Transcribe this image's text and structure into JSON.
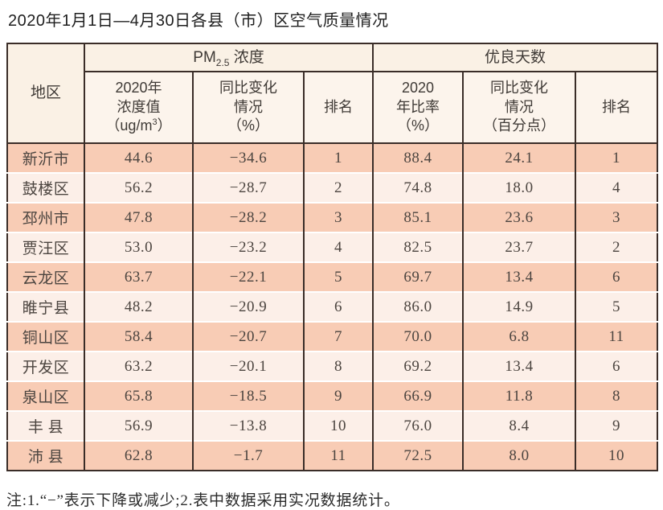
{
  "page": {
    "title": "2020年1月1日—4月30日各县（市）区空气质量情况",
    "note": "注:1.“−”表示下降或减少;2.表中数据采用实况数据统计。"
  },
  "chart_data": {
    "type": "table",
    "title": "2020年1月1日—4月30日各县（市）区空气质量情况",
    "headers": {
      "region": "地区",
      "pm_group_prefix": "PM",
      "pm_group_sub": "2.5",
      "pm_group_suffix": " 浓度",
      "good_group": "优良天数",
      "pm_value_l1": "2020年",
      "pm_value_l2": "浓度值",
      "pm_value_l3a": "（ug/m",
      "pm_value_l3sup": "3",
      "pm_value_l3b": "）",
      "pm_change_l1": "同比变化",
      "pm_change_l2": "情况",
      "pm_change_l3": "（%）",
      "pm_rank": "排名",
      "good_rate_l1": "2020",
      "good_rate_l2": "年比率",
      "good_rate_l3": "（%）",
      "good_change_l1": "同比变化",
      "good_change_l2": "情况",
      "good_change_l3": "（百分点）",
      "good_rank": "排名"
    },
    "fields": [
      "region",
      "pm_value",
      "pm_change",
      "pm_rank",
      "good_rate",
      "good_change",
      "good_rank"
    ],
    "rows": [
      {
        "region": "新沂市",
        "pm_value": "44.6",
        "pm_change": "−34.6",
        "pm_rank": "1",
        "good_rate": "88.4",
        "good_change": "24.1",
        "good_rank": "1"
      },
      {
        "region": "鼓楼区",
        "pm_value": "56.2",
        "pm_change": "−28.7",
        "pm_rank": "2",
        "good_rate": "74.8",
        "good_change": "18.0",
        "good_rank": "4"
      },
      {
        "region": "邳州市",
        "pm_value": "47.8",
        "pm_change": "−28.2",
        "pm_rank": "3",
        "good_rate": "85.1",
        "good_change": "23.6",
        "good_rank": "3"
      },
      {
        "region": "贾汪区",
        "pm_value": "53.0",
        "pm_change": "−23.2",
        "pm_rank": "4",
        "good_rate": "82.5",
        "good_change": "23.7",
        "good_rank": "2"
      },
      {
        "region": "云龙区",
        "pm_value": "63.7",
        "pm_change": "−22.1",
        "pm_rank": "5",
        "good_rate": "69.7",
        "good_change": "13.4",
        "good_rank": "6"
      },
      {
        "region": "睢宁县",
        "pm_value": "48.2",
        "pm_change": "−20.9",
        "pm_rank": "6",
        "good_rate": "86.0",
        "good_change": "14.9",
        "good_rank": "5"
      },
      {
        "region": "铜山区",
        "pm_value": "58.4",
        "pm_change": "−20.7",
        "pm_rank": "7",
        "good_rate": "70.0",
        "good_change": "6.8",
        "good_rank": "11"
      },
      {
        "region": "开发区",
        "pm_value": "63.2",
        "pm_change": "−20.1",
        "pm_rank": "8",
        "good_rate": "69.2",
        "good_change": "13.4",
        "good_rank": "6"
      },
      {
        "region": "泉山区",
        "pm_value": "65.8",
        "pm_change": "−18.5",
        "pm_rank": "9",
        "good_rate": "66.9",
        "good_change": "11.8",
        "good_rank": "8"
      },
      {
        "region": "丰 县",
        "pm_value": "56.9",
        "pm_change": "−13.8",
        "pm_rank": "10",
        "good_rate": "76.0",
        "good_change": "8.4",
        "good_rank": "9"
      },
      {
        "region": "沛 县",
        "pm_value": "62.8",
        "pm_change": "−1.7",
        "pm_rank": "11",
        "good_rate": "72.5",
        "good_change": "8.0",
        "good_rank": "10"
      }
    ],
    "colors": {
      "border": "#3a2d28",
      "row_dark": "#f8ccb5",
      "row_light": "#fcefe8",
      "header_bg": "#fbf2e8"
    },
    "layout": {
      "grid": "on",
      "column_groups": [
        "PM2.5浓度",
        "优良天数"
      ]
    }
  }
}
